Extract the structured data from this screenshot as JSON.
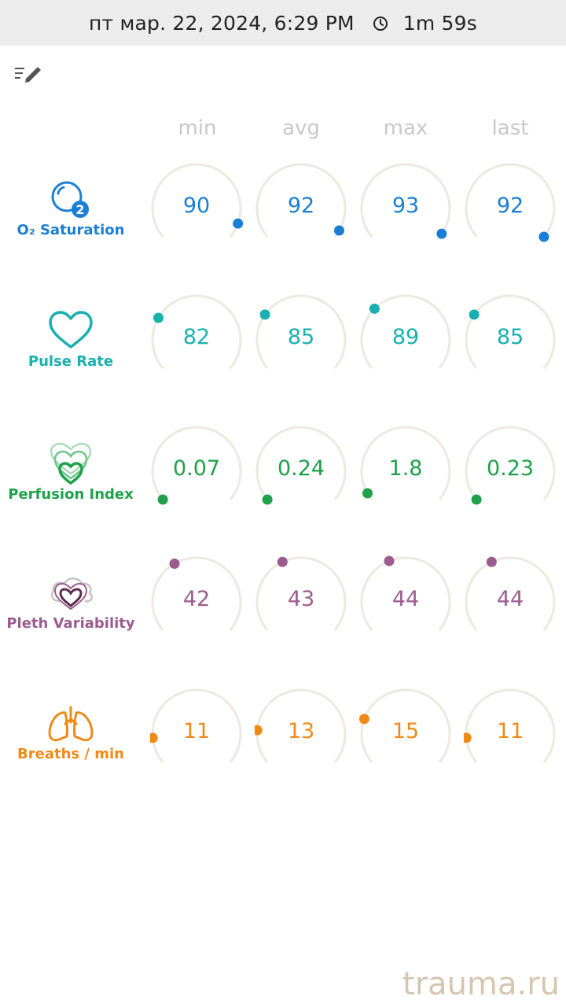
{
  "status_bar": {
    "datetime": "пт мар. 22, 2024, 6:29 PM",
    "duration": "1m 59s"
  },
  "columns": [
    "min",
    "avg",
    "max",
    "last"
  ],
  "metrics": [
    {
      "key": "o2",
      "label": "O₂ Saturation",
      "color": "#1a7fd4",
      "values": [
        "90",
        "92",
        "93",
        "92"
      ],
      "indicator_angle_deg": [
        110,
        120,
        125,
        130
      ]
    },
    {
      "key": "pulse",
      "label": "Pulse Rate",
      "color": "#1ab0b0",
      "values": [
        "82",
        "85",
        "89",
        "85"
      ],
      "indicator_angle_deg": [
        -60,
        -55,
        -45,
        -55
      ]
    },
    {
      "key": "perfusion",
      "label": "Perfusion Index",
      "color": "#1ea14a",
      "values": [
        "0.07",
        "0.24",
        "1.8",
        "0.23"
      ],
      "indicator_angle_deg": [
        -130,
        -130,
        -120,
        -130
      ]
    },
    {
      "key": "pleth",
      "label": "Pleth Variability",
      "color": "#9b5b8f",
      "values": [
        "42",
        "43",
        "44",
        "44"
      ],
      "indicator_angle_deg": [
        -30,
        -25,
        -22,
        -25
      ]
    },
    {
      "key": "breaths",
      "label": "Breaths / min",
      "color": "#f08a17",
      "values": [
        "11",
        "13",
        "15",
        "11"
      ],
      "indicator_angle_deg": [
        -95,
        -85,
        -70,
        -95
      ]
    }
  ],
  "watermark": "trauma.ru"
}
